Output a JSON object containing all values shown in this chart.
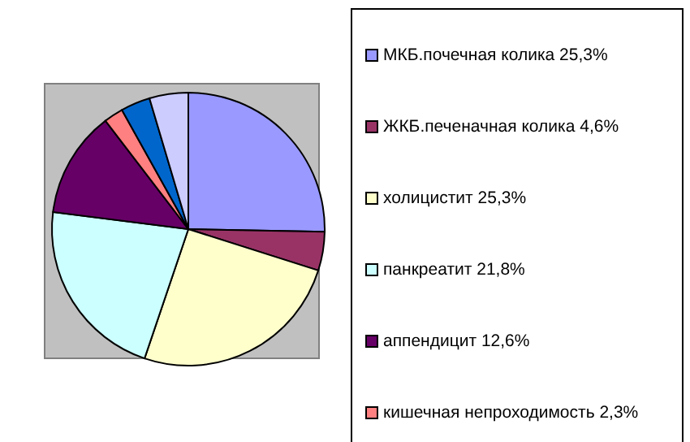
{
  "chart_data": {
    "type": "pie",
    "legend": "right",
    "categories": [
      "МКБ.почечная колика 25,3%",
      "ЖКБ.печеначная колика 4,6%",
      "холицистит 25,3%",
      "панкреатит 21,8%",
      "аппендицит 12,6%",
      "кишечная непроходимость 2,3%",
      null,
      null
    ],
    "values": [
      25.3,
      4.6,
      25.3,
      21.8,
      12.6,
      2.3,
      3.5,
      4.6
    ],
    "colors": [
      "#9999ff",
      "#993366",
      "#ffffcc",
      "#ccffff",
      "#660066",
      "#ff8080",
      "#0066cc",
      "#ccccff"
    ]
  }
}
